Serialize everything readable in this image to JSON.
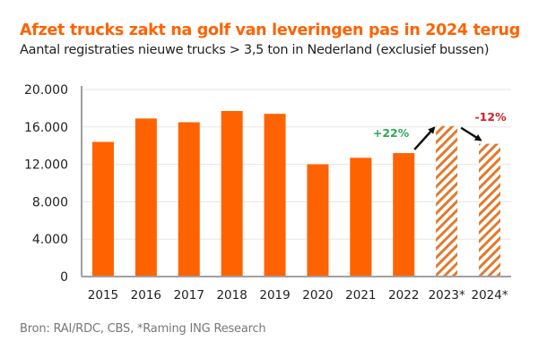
{
  "chart_data": {
    "type": "bar",
    "title": "Afzet trucks zakt na golf van leveringen pas in 2024 terug",
    "subtitle": "Aantal registraties nieuwe trucks > 3,5 ton in Nederland (exclusief bussen)",
    "xlabel": "",
    "ylabel": "",
    "ylim": [
      0,
      20000
    ],
    "yticks": [
      0,
      4000,
      8000,
      12000,
      16000,
      20000
    ],
    "ytick_labels": [
      "0",
      "4.000",
      "8.000",
      "12.000",
      "16.000",
      "20.000"
    ],
    "grid": true,
    "categories": [
      "2015",
      "2016",
      "2017",
      "2018",
      "2019",
      "2020",
      "2021",
      "2022",
      "2023*",
      "2024*"
    ],
    "values": [
      14400,
      16900,
      16500,
      17700,
      17400,
      12000,
      12700,
      13200,
      16100,
      14200
    ],
    "forecast": [
      false,
      false,
      false,
      false,
      false,
      false,
      false,
      false,
      true,
      true
    ],
    "colors": {
      "bar": "#ff6200",
      "forecast_hatch": "#e07a2e",
      "positive_annotation": "#2eaa5a",
      "negative_annotation": "#d0202a",
      "arrow": "#111111",
      "grid": "#e6e6e6",
      "axis": "#a0a0a0"
    },
    "annotations": [
      {
        "text": "+22%",
        "from": "2022",
        "to": "2023*",
        "direction": "up"
      },
      {
        "text": "-12%",
        "from": "2023*",
        "to": "2024*",
        "direction": "down"
      }
    ],
    "source": "Bron: RAI/RDC, CBS, *Raming ING Research"
  }
}
